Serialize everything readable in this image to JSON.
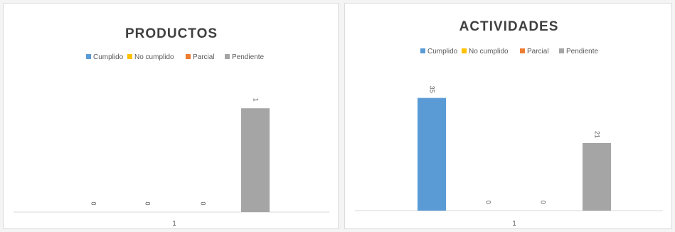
{
  "chart_data": [
    {
      "type": "bar",
      "title": "PRODUCTOS",
      "categories": [
        "1"
      ],
      "series": [
        {
          "name": "Cumplido",
          "color": "#5b9bd5",
          "values": [
            0
          ]
        },
        {
          "name": "No cumplido",
          "color": "#ffc000",
          "values": [
            0
          ]
        },
        {
          "name": "Parcial",
          "color": "#ed7d31",
          "values": [
            0
          ]
        },
        {
          "name": "Pendiente",
          "color": "#a5a5a5",
          "values": [
            1
          ]
        }
      ],
      "data_labels": [
        "0",
        "0",
        "0",
        "1"
      ],
      "ylim": [
        0,
        1.2
      ],
      "legend": "top",
      "grid": false
    },
    {
      "type": "bar",
      "title": "ACTIVIDADES",
      "categories": [
        "1"
      ],
      "series": [
        {
          "name": "Cumplido",
          "color": "#5b9bd5",
          "values": [
            35
          ]
        },
        {
          "name": "No cumplido",
          "color": "#ffc000",
          "values": [
            0
          ]
        },
        {
          "name": "Parcial",
          "color": "#ed7d31",
          "values": [
            0
          ]
        },
        {
          "name": "Pendiente",
          "color": "#a5a5a5",
          "values": [
            21
          ]
        }
      ],
      "data_labels": [
        "35",
        "0",
        "0",
        "21"
      ],
      "ylim": [
        0,
        40
      ],
      "legend": "top",
      "grid": false
    }
  ]
}
